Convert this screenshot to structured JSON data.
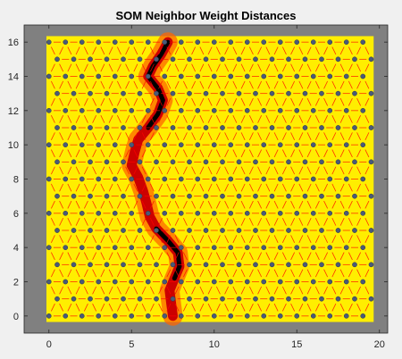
{
  "chart_data": {
    "type": "heatmap",
    "title": "SOM Neighbor Weight Distances",
    "xlabel": "",
    "ylabel": "",
    "xlim": [
      -1.5,
      20.5
    ],
    "ylim": [
      -1,
      17
    ],
    "x_ticks": [
      0,
      5,
      10,
      15,
      20
    ],
    "y_ticks": [
      0,
      2,
      4,
      6,
      8,
      10,
      12,
      14,
      16
    ],
    "grid": {
      "rows": 17,
      "cols": 20,
      "topology": "hexagonal"
    },
    "colors": {
      "axes_background": "#808080",
      "low_distance": "#ffee00",
      "mid_distance": "#ff6600",
      "high_distance": "#cc0000",
      "max_distance": "#000000",
      "neuron": "#4a5a78",
      "connection": "#ff0000"
    },
    "boundary_path": [
      [
        7.2,
        16.0
      ],
      [
        6.8,
        15.3
      ],
      [
        6.3,
        14.6
      ],
      [
        6.0,
        14.0
      ],
      [
        6.6,
        13.3
      ],
      [
        6.9,
        12.6
      ],
      [
        6.6,
        11.8
      ],
      [
        6.0,
        11.0
      ],
      [
        5.4,
        10.3
      ],
      [
        5.2,
        9.6
      ],
      [
        5.0,
        8.8
      ],
      [
        5.4,
        8.1
      ],
      [
        5.7,
        7.3
      ],
      [
        5.9,
        6.6
      ],
      [
        6.1,
        5.8
      ],
      [
        6.5,
        5.1
      ],
      [
        7.2,
        4.4
      ],
      [
        7.8,
        3.7
      ],
      [
        7.9,
        2.9
      ],
      [
        7.6,
        2.2
      ],
      [
        7.3,
        1.5
      ],
      [
        7.4,
        0.7
      ],
      [
        7.5,
        0.0
      ]
    ],
    "strong_boundary_segments": [
      [
        0,
        7
      ],
      [
        15,
        19
      ]
    ]
  }
}
